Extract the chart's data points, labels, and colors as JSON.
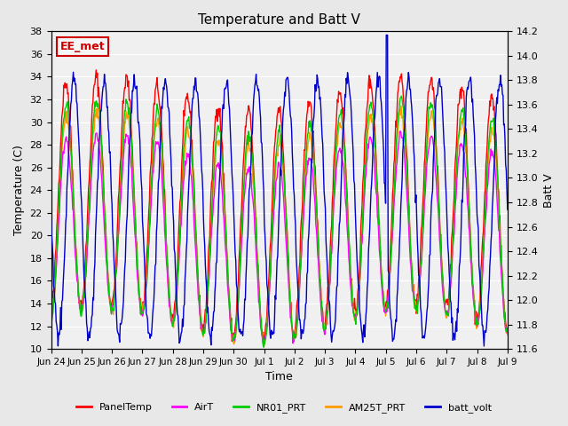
{
  "title": "Temperature and Batt V",
  "ylabel_left": "Temperature (C)",
  "ylabel_right": "Batt V",
  "xlabel": "Time",
  "ylim_left": [
    10,
    38
  ],
  "ylim_right": [
    11.6,
    14.2
  ],
  "xtick_labels": [
    "Jun 24",
    "Jun 25",
    "Jun 26",
    "Jun 27",
    "Jun 28",
    "Jun 29",
    "Jun 30",
    "Jul 1",
    "Jul 2",
    "Jul 3",
    "Jul 4",
    "Jul 5",
    "Jul 6",
    "Jul 7",
    "Jul 8",
    "Jul 9"
  ],
  "yticks_left": [
    10,
    12,
    14,
    16,
    18,
    20,
    22,
    24,
    26,
    28,
    30,
    32,
    34,
    36,
    38
  ],
  "yticks_right": [
    11.6,
    11.8,
    12.0,
    12.2,
    12.4,
    12.6,
    12.8,
    13.0,
    13.2,
    13.4,
    13.6,
    13.8,
    14.0,
    14.2
  ],
  "series_colors": {
    "PanelTemp": "#ff0000",
    "AirT": "#ff00ff",
    "NR01_PRT": "#00cc00",
    "AM25T_PRT": "#ff9900",
    "batt_volt": "#0000cc"
  },
  "legend_labels": [
    "PanelTemp",
    "AirT",
    "NR01_PRT",
    "AM25T_PRT",
    "batt_volt"
  ],
  "watermark_text": "EE_met",
  "watermark_color": "#cc0000",
  "bg_color": "#e8e8e8",
  "plot_bg_color": "#f0f0f0",
  "grid_color": "#ffffff",
  "n_days": 15,
  "pts_per_day": 48,
  "batt_min_base": 11.7,
  "batt_max_base": 13.8
}
